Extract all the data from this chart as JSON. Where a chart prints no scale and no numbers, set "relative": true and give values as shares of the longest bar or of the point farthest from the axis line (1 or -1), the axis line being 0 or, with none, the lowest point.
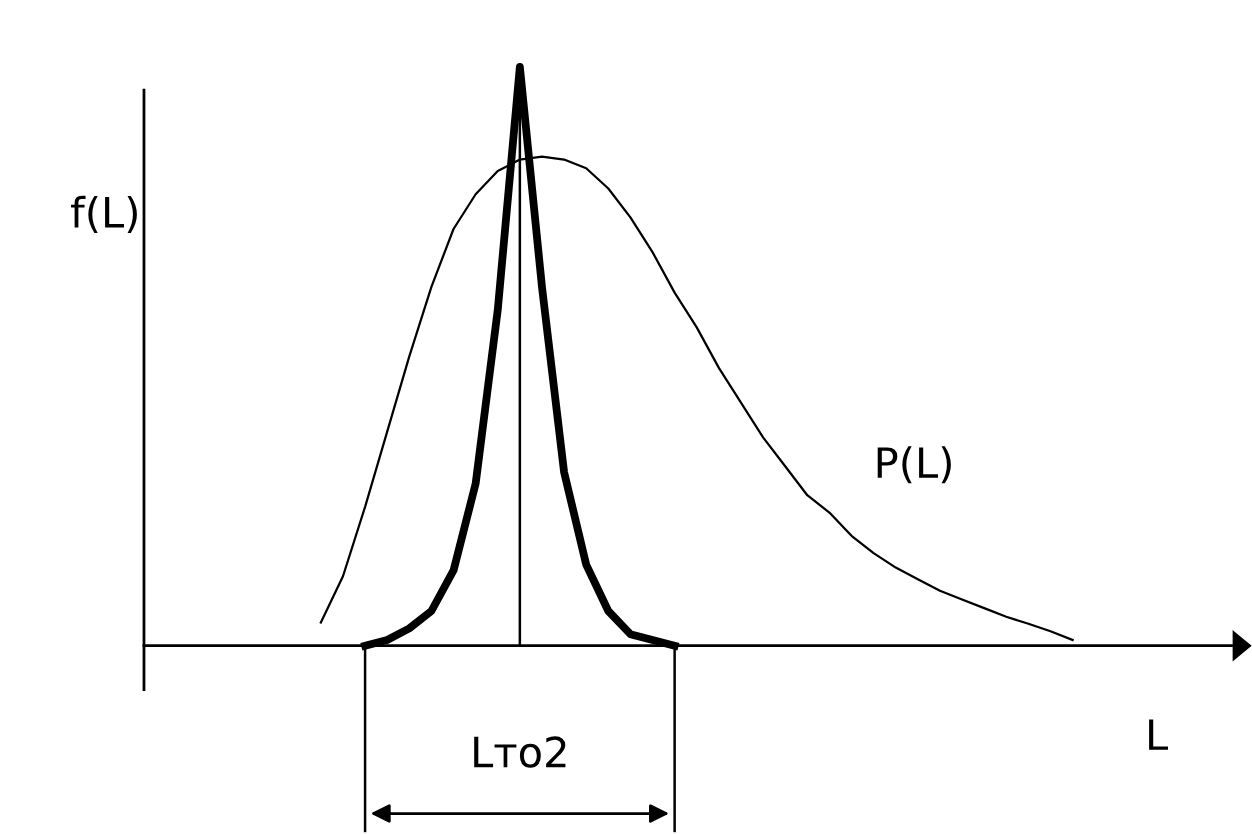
{
  "chart_data": {
    "type": "line",
    "relative": true,
    "xlabel": "L",
    "ylabel": "f(L)",
    "marker": "none",
    "line_style": "solid",
    "categories": [
      null,
      null,
      null,
      null,
      null,
      null,
      null,
      null,
      null,
      null,
      null,
      null,
      null,
      null,
      null,
      null,
      null,
      null,
      null,
      null,
      null,
      null,
      null,
      null,
      null,
      null,
      null,
      null,
      null,
      null,
      null,
      null,
      null,
      null,
      null,
      null,
      null,
      null,
      null,
      null,
      null,
      null,
      null,
      null,
      null,
      null,
      null,
      null,
      null,
      null,
      null
    ],
    "series": [
      {
        "color": "#000000",
        "values": [
          null,
          null,
          null,
          null,
          null,
          null,
          null,
          null,
          null,
          null,
          0,
          0.01,
          0.03,
          0.06,
          0.13,
          0.28,
          0.58,
          1,
          0.62,
          0.3,
          0.14,
          0.06,
          0.02,
          0.01,
          0,
          null,
          null,
          null,
          null,
          null,
          null,
          null,
          null,
          null,
          null,
          null,
          null,
          null,
          null,
          null,
          null,
          null,
          null,
          null,
          null,
          null,
          null,
          null,
          null,
          null,
          null
        ]
      },
      {
        "name": "P(L)",
        "color": "#000000",
        "values": [
          null,
          null,
          null,
          null,
          null,
          null,
          null,
          null,
          0.04,
          0.12,
          0.24,
          0.37,
          0.5,
          0.62,
          0.72,
          0.78,
          0.82,
          0.84,
          0.845,
          0.84,
          0.825,
          0.79,
          0.74,
          0.68,
          0.61,
          0.55,
          0.48,
          0.42,
          0.36,
          0.31,
          0.26,
          0.23,
          0.19,
          0.16,
          0.135,
          0.115,
          0.095,
          0.08,
          0.065,
          0.05,
          0.038,
          0.025,
          0.01,
          null,
          null,
          null,
          null,
          null,
          null,
          null,
          null
        ]
      }
    ],
    "annotations": [
      "Lто2"
    ]
  }
}
